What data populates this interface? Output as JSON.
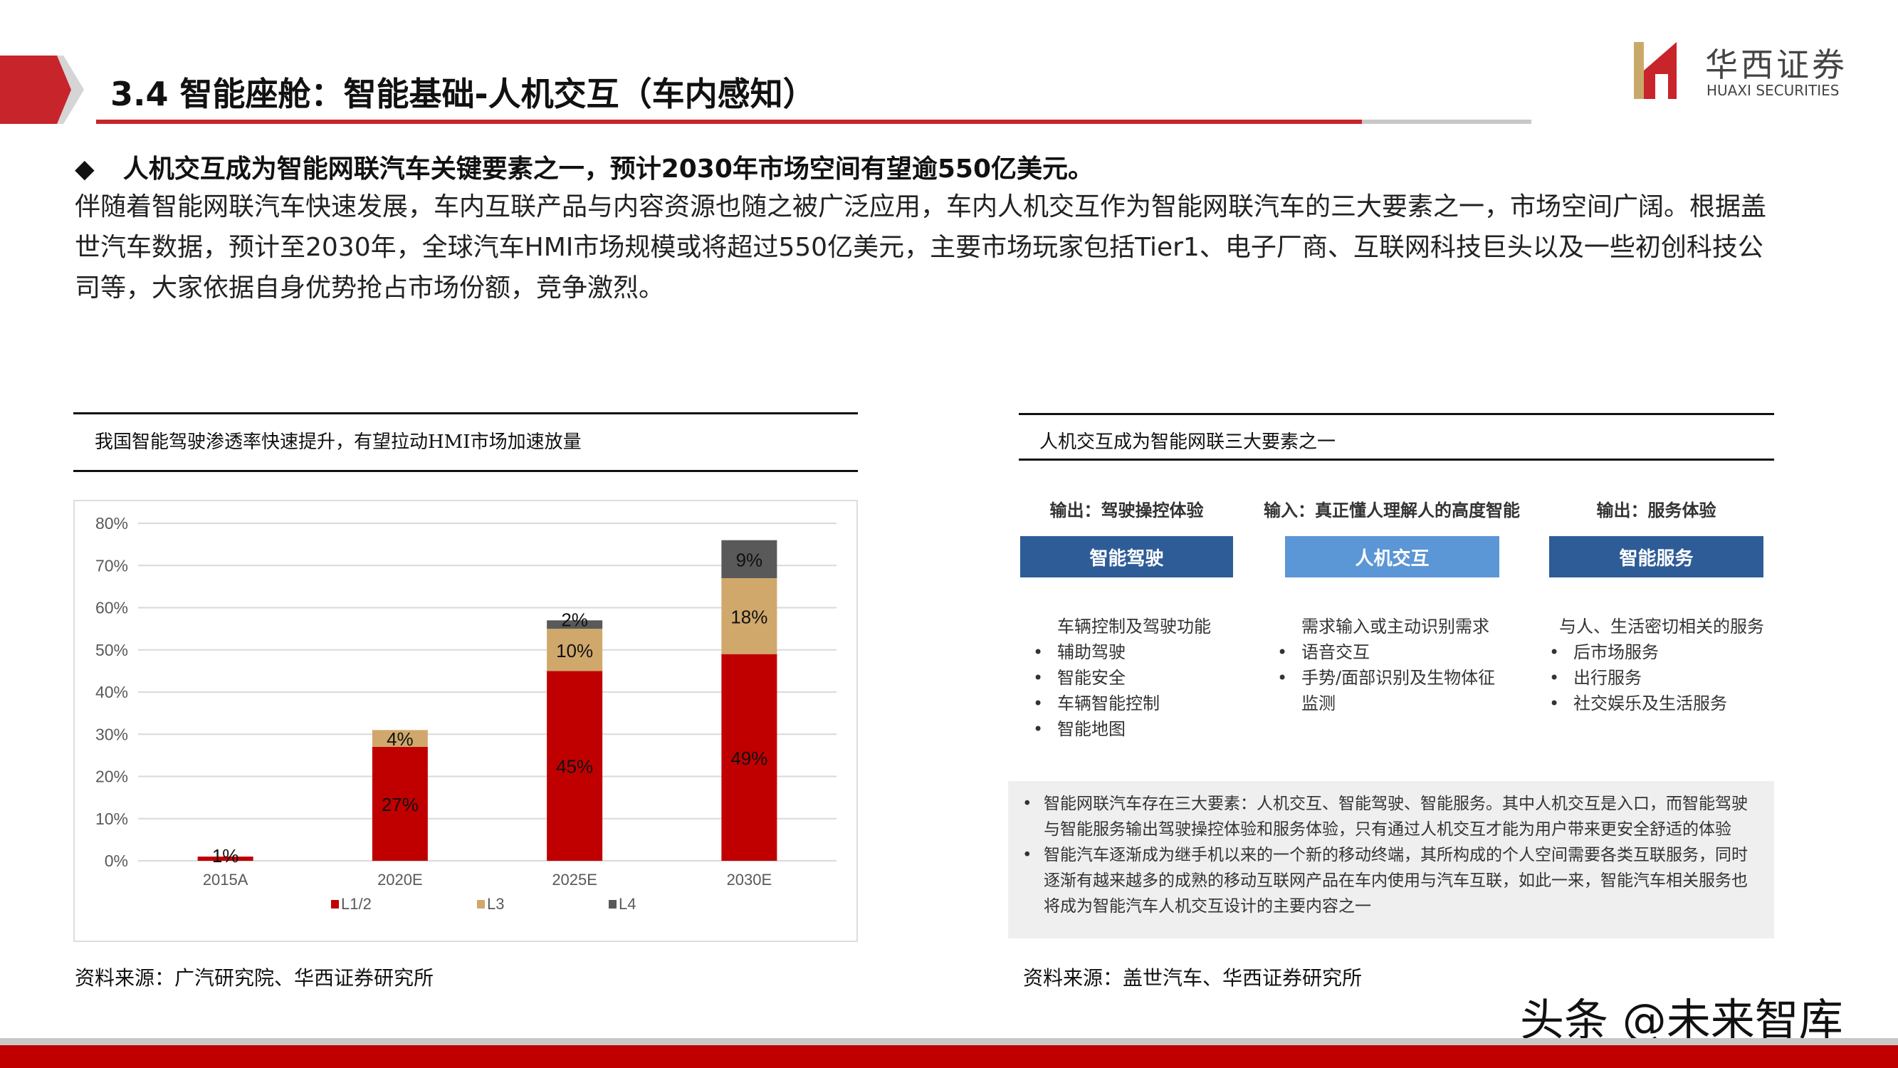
{
  "header": {
    "title": "3.4 智能座舱：智能基础-人机交互（车内感知）",
    "logo_cn": "华西证券",
    "logo_en": "HUAXI SECURITIES"
  },
  "lead": {
    "bullet": "◆",
    "text": "人机交互成为智能网联汽车关键要素之一，预计2030年市场空间有望逾550亿美元。"
  },
  "paragraph": "伴随着智能网联汽车快速发展，车内互联产品与内容资源也随之被广泛应用，车内人机交互作为智能网联汽车的三大要素之一，市场空间广阔。根据盖世汽车数据，预计至2030年，全球汽车HMI市场规模或将超过550亿美元，主要市场玩家包括Tier1、电子厂商、互联网科技巨头以及一些初创科技公司等，大家依据自身优势抢占市场份额，竞争激烈。",
  "left_panel": {
    "caption": "我国智能驾驶渗透率快速提升，有望拉动HMI市场加速放量",
    "source": "资料来源：广汽研究院、华西证券研究所"
  },
  "chart_data": {
    "type": "bar",
    "stacked": true,
    "categories": [
      "2015A",
      "2020E",
      "2025E",
      "2030E"
    ],
    "series": [
      {
        "name": "L1/2",
        "values": [
          1,
          27,
          45,
          49
        ],
        "labels": [
          "1%",
          "27%",
          "45%",
          "49%"
        ],
        "color": "#c00000"
      },
      {
        "name": "L3",
        "values": [
          0,
          4,
          10,
          18
        ],
        "labels": [
          "",
          "4%",
          "10%",
          "18%"
        ],
        "color": "#d0a86b"
      },
      {
        "name": "L4",
        "values": [
          0,
          0,
          2,
          9
        ],
        "labels": [
          "",
          "",
          "2%",
          "9%"
        ],
        "color": "#595959"
      }
    ],
    "yticks": [
      "0%",
      "10%",
      "20%",
      "30%",
      "40%",
      "50%",
      "60%",
      "70%",
      "80%"
    ],
    "ylim": [
      0,
      80
    ],
    "grid": true,
    "legend": "bottom"
  },
  "right_panel": {
    "caption": "人机交互成为智能网联三大要素之一",
    "columns": [
      {
        "head": "输出：驾驶操控体验",
        "box": "智能驾驶",
        "box_color": "#2e5c97",
        "intro": "车辆控制及驾驶功能",
        "items": [
          "辅助驾驶",
          "智能安全",
          "车辆智能控制",
          "智能地图"
        ]
      },
      {
        "head": "输入：真正懂人理解人的高度智能",
        "box": "人机交互",
        "box_color": "#5b96d6",
        "intro": "需求输入或主动识别需求",
        "items": [
          "语音交互",
          "手势/面部识别及生物体征监测"
        ]
      },
      {
        "head": "输出：服务体验",
        "box": "智能服务",
        "box_color": "#2e5c97",
        "intro": "与人、生活密切相关的服务",
        "items": [
          "后市场服务",
          "出行服务",
          "社交娱乐及生活服务"
        ]
      }
    ],
    "notes": [
      "智能网联汽车存在三大要素：人机交互、智能驾驶、智能服务。其中人机交互是入口，而智能驾驶与智能服务输出驾驶操控体验和服务体验，只有通过人机交互才能为用户带来更安全舒适的体验",
      "智能汽车逐渐成为继手机以来的一个新的移动终端，其所构成的个人空间需要各类互联服务，同时逐渐有越来越多的成熟的移动互联网产品在车内使用与汽车互联，如此一来，智能汽车相关服务也将成为智能汽车人机交互设计的主要内容之一"
    ],
    "source": "资料来源：盖世汽车、华西证券研究所"
  },
  "watermark": "头条 @未来智库"
}
